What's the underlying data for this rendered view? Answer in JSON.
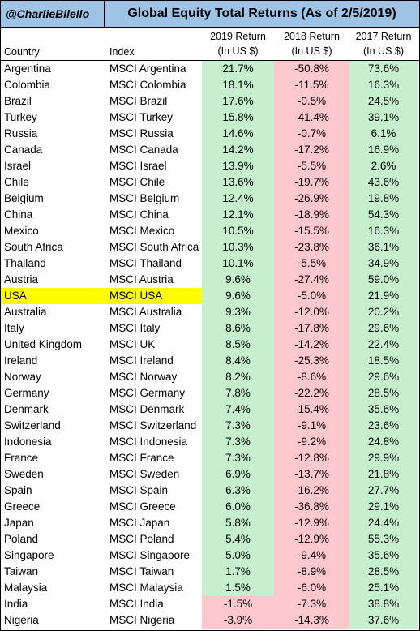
{
  "header": {
    "handle": "@CharlieBilello",
    "title": "Global Equity Total Returns (As of  2/5/2019)"
  },
  "columns": {
    "country": "Country",
    "index": "Index",
    "r2019_line1": "2019 Return",
    "r2019_line2": "(In US $)",
    "r2018_line1": "2018 Return",
    "r2018_line2": "(In US $)",
    "r2017_line1": "2017 Return",
    "r2017_line2": "(In US $)"
  },
  "colors": {
    "positive_fill": "#c6efce",
    "negative_fill": "#ffc7ce",
    "highlight": "#ffff00",
    "header_fill": "#9dc3e6"
  },
  "chart_data": {
    "type": "table",
    "title": "Global Equity Total Returns (As of  2/5/2019)",
    "columns": [
      "Country",
      "Index",
      "2019 Return (In US $)",
      "2018 Return (In US $)",
      "2017 Return (In US $)"
    ],
    "highlighted_row": "USA",
    "rows": [
      {
        "country": "Argentina",
        "index": "MSCI Argentina",
        "r2019": "21.7%",
        "r2018": "-50.8%",
        "r2017": "73.6%"
      },
      {
        "country": "Colombia",
        "index": "MSCI Colombia",
        "r2019": "18.1%",
        "r2018": "-11.5%",
        "r2017": "16.3%"
      },
      {
        "country": "Brazil",
        "index": "MSCI Brazil",
        "r2019": "17.6%",
        "r2018": "-0.5%",
        "r2017": "24.5%"
      },
      {
        "country": "Turkey",
        "index": "MSCI Turkey",
        "r2019": "15.8%",
        "r2018": "-41.4%",
        "r2017": "39.1%"
      },
      {
        "country": "Russia",
        "index": "MSCI Russia",
        "r2019": "14.6%",
        "r2018": "-0.7%",
        "r2017": "6.1%"
      },
      {
        "country": "Canada",
        "index": "MSCI Canada",
        "r2019": "14.2%",
        "r2018": "-17.2%",
        "r2017": "16.9%"
      },
      {
        "country": "Israel",
        "index": "MSCI Israel",
        "r2019": "13.9%",
        "r2018": "-5.5%",
        "r2017": "2.6%"
      },
      {
        "country": "Chile",
        "index": "MSCI Chile",
        "r2019": "13.6%",
        "r2018": "-19.7%",
        "r2017": "43.6%"
      },
      {
        "country": "Belgium",
        "index": "MSCI Belgium",
        "r2019": "12.4%",
        "r2018": "-26.9%",
        "r2017": "19.8%"
      },
      {
        "country": "China",
        "index": "MSCI China",
        "r2019": "12.1%",
        "r2018": "-18.9%",
        "r2017": "54.3%"
      },
      {
        "country": "Mexico",
        "index": "MSCI Mexico",
        "r2019": "10.5%",
        "r2018": "-15.5%",
        "r2017": "16.3%"
      },
      {
        "country": "South Africa",
        "index": "MSCI South Africa",
        "r2019": "10.3%",
        "r2018": "-23.8%",
        "r2017": "36.1%"
      },
      {
        "country": "Thailand",
        "index": "MSCI Thailand",
        "r2019": "10.1%",
        "r2018": "-5.5%",
        "r2017": "34.9%"
      },
      {
        "country": "Austria",
        "index": "MSCI Austria",
        "r2019": "9.6%",
        "r2018": "-27.4%",
        "r2017": "59.0%"
      },
      {
        "country": "USA",
        "index": "MSCI USA",
        "r2019": "9.6%",
        "r2018": "-5.0%",
        "r2017": "21.9%"
      },
      {
        "country": "Australia",
        "index": "MSCI Australia",
        "r2019": "9.3%",
        "r2018": "-12.0%",
        "r2017": "20.2%"
      },
      {
        "country": "Italy",
        "index": "MSCI Italy",
        "r2019": "8.6%",
        "r2018": "-17.8%",
        "r2017": "29.6%"
      },
      {
        "country": "United Kingdom",
        "index": "MSCI UK",
        "r2019": "8.5%",
        "r2018": "-14.2%",
        "r2017": "22.4%"
      },
      {
        "country": "Ireland",
        "index": "MSCI Ireland",
        "r2019": "8.4%",
        "r2018": "-25.3%",
        "r2017": "18.5%"
      },
      {
        "country": "Norway",
        "index": "MSCI Norway",
        "r2019": "8.2%",
        "r2018": "-8.6%",
        "r2017": "29.6%"
      },
      {
        "country": "Germany",
        "index": "MSCI Germany",
        "r2019": "7.8%",
        "r2018": "-22.2%",
        "r2017": "28.5%"
      },
      {
        "country": "Denmark",
        "index": "MSCI Denmark",
        "r2019": "7.4%",
        "r2018": "-15.4%",
        "r2017": "35.6%"
      },
      {
        "country": "Switzerland",
        "index": "MSCI Switzerland",
        "r2019": "7.3%",
        "r2018": "-9.1%",
        "r2017": "23.6%"
      },
      {
        "country": "Indonesia",
        "index": "MSCI Indonesia",
        "r2019": "7.3%",
        "r2018": "-9.2%",
        "r2017": "24.8%"
      },
      {
        "country": "France",
        "index": "MSCI France",
        "r2019": "7.3%",
        "r2018": "-12.8%",
        "r2017": "29.9%"
      },
      {
        "country": "Sweden",
        "index": "MSCI Sweden",
        "r2019": "6.9%",
        "r2018": "-13.7%",
        "r2017": "21.8%"
      },
      {
        "country": "Spain",
        "index": "MSCI Spain",
        "r2019": "6.3%",
        "r2018": "-16.2%",
        "r2017": "27.7%"
      },
      {
        "country": "Greece",
        "index": "MSCI Greece",
        "r2019": "6.0%",
        "r2018": "-36.8%",
        "r2017": "29.1%"
      },
      {
        "country": "Japan",
        "index": "MSCI Japan",
        "r2019": "5.8%",
        "r2018": "-12.9%",
        "r2017": "24.4%"
      },
      {
        "country": "Poland",
        "index": "MSCI Poland",
        "r2019": "5.4%",
        "r2018": "-12.9%",
        "r2017": "55.3%"
      },
      {
        "country": "Singapore",
        "index": "MSCI Singapore",
        "r2019": "5.0%",
        "r2018": "-9.4%",
        "r2017": "35.6%"
      },
      {
        "country": "Taiwan",
        "index": "MSCI Taiwan",
        "r2019": "1.7%",
        "r2018": "-8.9%",
        "r2017": "28.5%"
      },
      {
        "country": "Malaysia",
        "index": "MSCI Malaysia",
        "r2019": "1.5%",
        "r2018": "-6.0%",
        "r2017": "25.1%"
      },
      {
        "country": "India",
        "index": "MSCI India",
        "r2019": "-1.5%",
        "r2018": "-7.3%",
        "r2017": "38.8%"
      },
      {
        "country": "Nigeria",
        "index": "MSCI Nigeria",
        "r2019": "-3.9%",
        "r2018": "-14.3%",
        "r2017": "37.6%"
      }
    ]
  }
}
